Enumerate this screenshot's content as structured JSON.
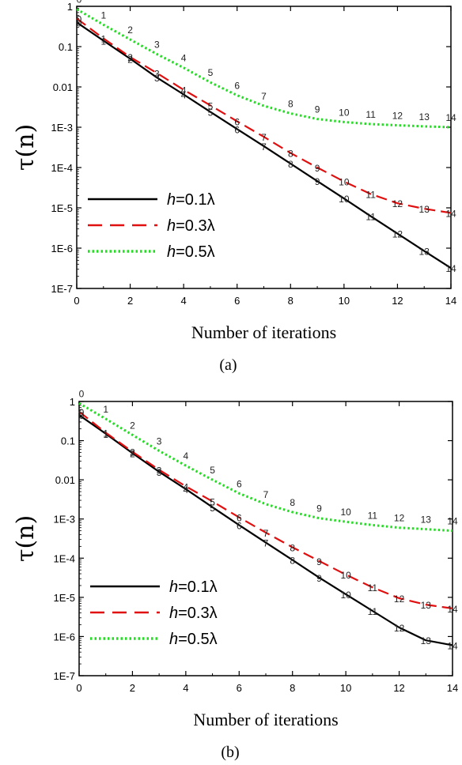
{
  "chart_data": [
    {
      "type": "line",
      "panel": "(a)",
      "xlabel": "Number of iterations",
      "ylabel": "τ(n)",
      "yscale": "log",
      "xlim": [
        0,
        14
      ],
      "ylim": [
        1e-07,
        1
      ],
      "x_ticks": [
        "0",
        "2",
        "4",
        "6",
        "8",
        "10",
        "12",
        "14"
      ],
      "y_ticks": [
        "1E-7",
        "1E-6",
        "1E-5",
        "1E-4",
        "1E-3",
        "0.01",
        "0.1",
        "1"
      ],
      "legend_position": "lower-left",
      "x": [
        0,
        1,
        2,
        3,
        4,
        5,
        6,
        7,
        8,
        9,
        10,
        11,
        12,
        13,
        14
      ],
      "point_labels": [
        "0",
        "1",
        "2",
        "3",
        "4",
        "5",
        "6",
        "7",
        "8",
        "9",
        "10",
        "11",
        "12",
        "13",
        "14"
      ],
      "series": [
        {
          "name": "h=0.1λ",
          "color": "#000000",
          "dash": "solid",
          "values": [
            0.4,
            0.14,
            0.05,
            0.017,
            0.0065,
            0.0024,
            0.0009,
            0.00034,
            0.000125,
            4.6e-05,
            1.7e-05,
            6.2e-06,
            2.3e-06,
            8.5e-07,
            3.2e-07
          ]
        },
        {
          "name": "h=0.3λ",
          "color": "#e01010",
          "dash": "dashed",
          "values": [
            0.5,
            0.16,
            0.055,
            0.022,
            0.0085,
            0.0035,
            0.0014,
            0.00058,
            0.00023,
            0.0001,
            4.5e-05,
            2.2e-05,
            1.3e-05,
            9.5e-06,
            7.5e-06
          ]
        },
        {
          "name": "h=0.5λ",
          "color": "#22dd22",
          "dash": "dotted",
          "values": [
            0.85,
            0.35,
            0.15,
            0.065,
            0.03,
            0.013,
            0.0062,
            0.0034,
            0.0022,
            0.0016,
            0.00135,
            0.0012,
            0.00112,
            0.00105,
            0.001
          ]
        }
      ]
    },
    {
      "type": "line",
      "panel": "(b)",
      "xlabel": "Number of iterations",
      "ylabel": "τ(n)",
      "yscale": "log",
      "xlim": [
        0,
        14
      ],
      "ylim": [
        1e-07,
        1
      ],
      "x_ticks": [
        "0",
        "2",
        "4",
        "6",
        "8",
        "10",
        "12",
        "14"
      ],
      "y_ticks": [
        "1E-7",
        "1E-6",
        "1E-5",
        "1E-4",
        "1E-3",
        "0.01",
        "0.1",
        "1"
      ],
      "legend_position": "lower-left",
      "x": [
        0,
        1,
        2,
        3,
        4,
        5,
        6,
        7,
        8,
        9,
        10,
        11,
        12,
        13,
        14
      ],
      "point_labels": [
        "0",
        "1",
        "2",
        "3",
        "4",
        "5",
        "6",
        "7",
        "8",
        "9",
        "10",
        "11",
        "12",
        "13",
        "14"
      ],
      "series": [
        {
          "name": "h=0.1λ",
          "color": "#000000",
          "dash": "solid",
          "values": [
            0.45,
            0.15,
            0.048,
            0.016,
            0.0058,
            0.002,
            0.0007,
            0.00025,
            9e-05,
            3.2e-05,
            1.2e-05,
            4.5e-06,
            1.7e-06,
            8e-07,
            6e-07
          ]
        },
        {
          "name": "h=0.3λ",
          "color": "#e01010",
          "dash": "dashed",
          "values": [
            0.55,
            0.16,
            0.052,
            0.018,
            0.0068,
            0.0028,
            0.0011,
            0.00045,
            0.00019,
            8.5e-05,
            3.8e-05,
            1.8e-05,
            9.5e-06,
            6.5e-06,
            5.2e-06
          ]
        },
        {
          "name": "h=0.5λ",
          "color": "#22dd22",
          "dash": "dotted",
          "values": [
            0.9,
            0.36,
            0.14,
            0.055,
            0.023,
            0.01,
            0.0045,
            0.0024,
            0.0015,
            0.00105,
            0.00085,
            0.0007,
            0.0006,
            0.00055,
            0.0005
          ]
        }
      ]
    }
  ]
}
